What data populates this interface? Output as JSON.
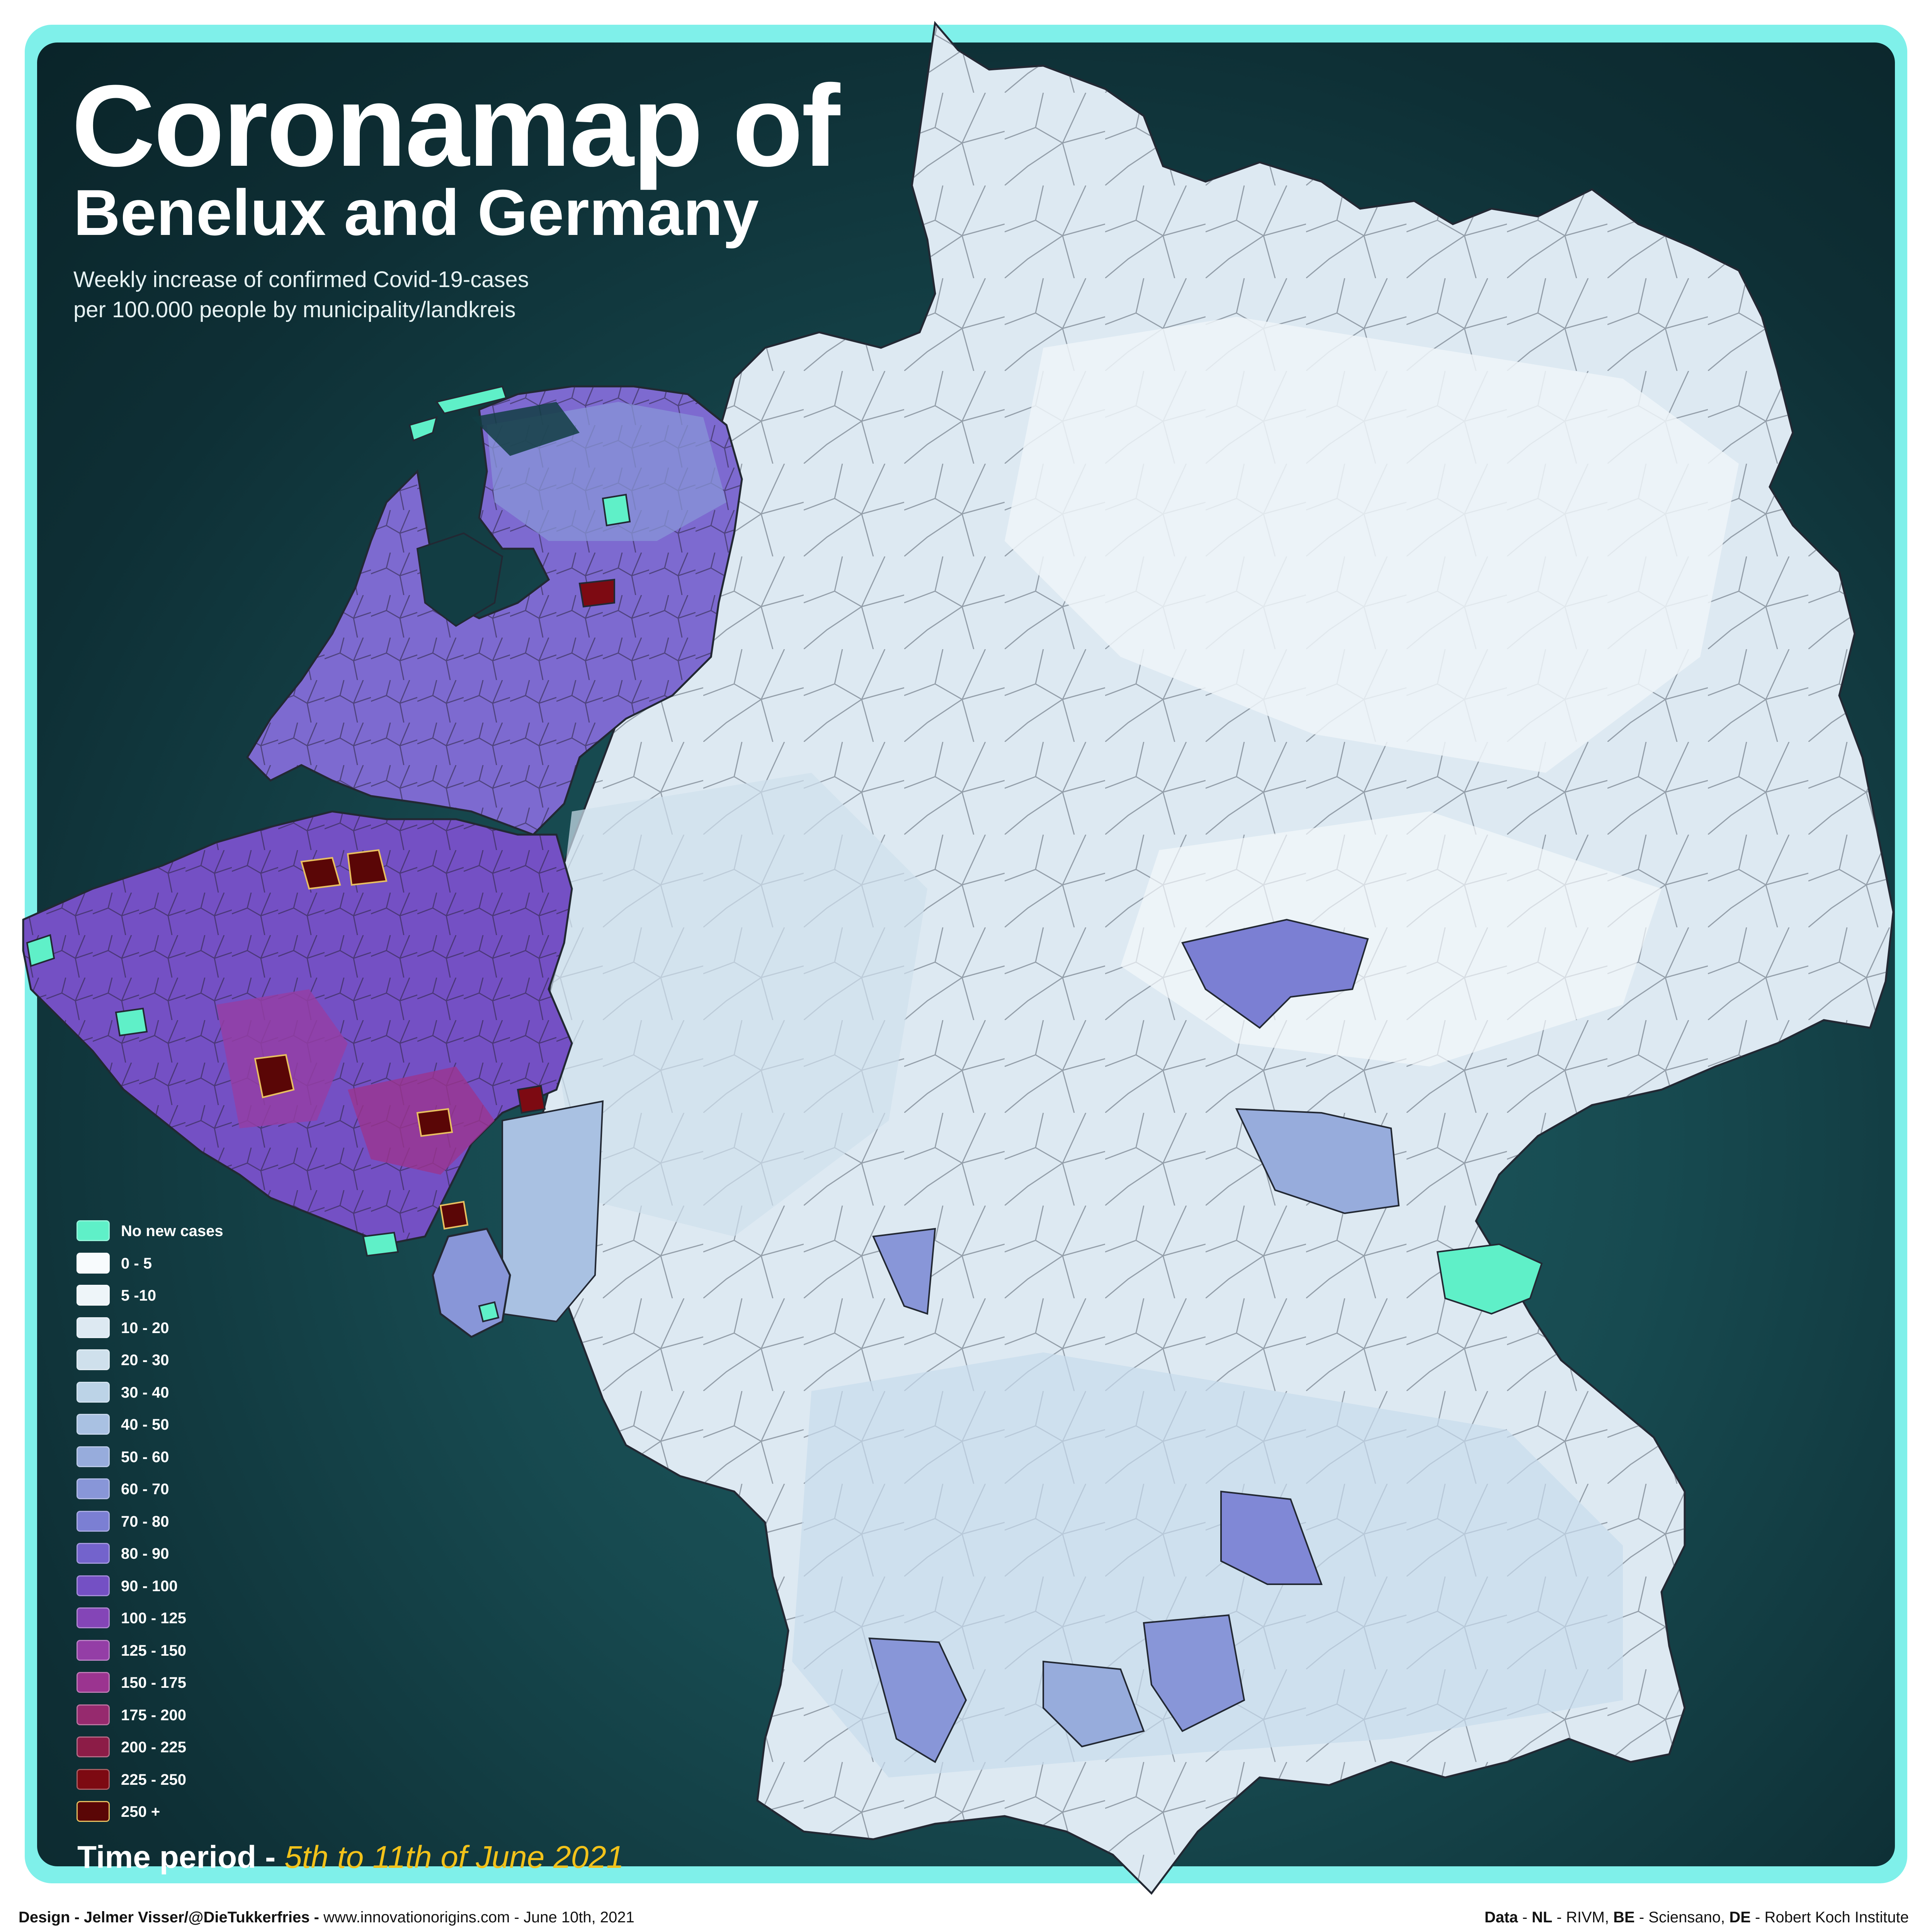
{
  "title": {
    "line1": "Coronamap of",
    "line2": "Benelux and Germany"
  },
  "subtitle": {
    "line1": "Weekly increase of confirmed Covid-19-cases",
    "line2": "per 100.000 people by municipality/landkreis"
  },
  "legend": [
    {
      "label": "No new cases",
      "color": "#5ff0c8"
    },
    {
      "label": "0 - 5",
      "color": "#f8fbfd"
    },
    {
      "label": "5 -10",
      "color": "#eef5f9"
    },
    {
      "label": "10 - 20",
      "color": "#dde9f2"
    },
    {
      "label": "20 - 30",
      "color": "#cfe0ec"
    },
    {
      "label": "30 - 40",
      "color": "#bcd3e7"
    },
    {
      "label": "40 - 50",
      "color": "#a9c1e2"
    },
    {
      "label": "50 - 60",
      "color": "#97acdc"
    },
    {
      "label": "60 - 70",
      "color": "#8896d8"
    },
    {
      "label": "70 - 80",
      "color": "#7b7fd3"
    },
    {
      "label": "80 - 90",
      "color": "#7363cc"
    },
    {
      "label": "90 - 100",
      "color": "#7450c4"
    },
    {
      "label": "100 - 125",
      "color": "#8445b7"
    },
    {
      "label": "125 - 150",
      "color": "#943ea6"
    },
    {
      "label": "150 - 175",
      "color": "#9b3490"
    },
    {
      "label": "175 - 200",
      "color": "#962a6e"
    },
    {
      "label": "200 - 225",
      "color": "#8c1c47"
    },
    {
      "label": "225 - 250",
      "color": "#7d0a12"
    },
    {
      "label": "250 +",
      "color": "#5a0606"
    }
  ],
  "period": {
    "label": "Time period -",
    "dates": "5th to 11th of June 2021"
  },
  "credits": {
    "design_label": "Design - Jelmer Visser/@DieTukkerfries - ",
    "design_rest": "www.innovationorigins.com - June 10th, 2021",
    "data_label": "Data",
    "data_sep1": " - ",
    "nl_label": "NL",
    "nl_src": " - RIVM, ",
    "be_label": "BE",
    "be_src": " - Sciensano, ",
    "de_label": "DE",
    "de_src": " - Robert Koch Institute"
  },
  "map": {
    "regions": [
      "Netherlands",
      "Belgium",
      "Luxembourg",
      "Germany"
    ],
    "colors": {
      "germany_base": "#dde9f2",
      "benelux_base": "#7d6ad0",
      "border": "#222833",
      "hotspot": "#7d0a12",
      "no_cases": "#5ff0c8"
    }
  }
}
